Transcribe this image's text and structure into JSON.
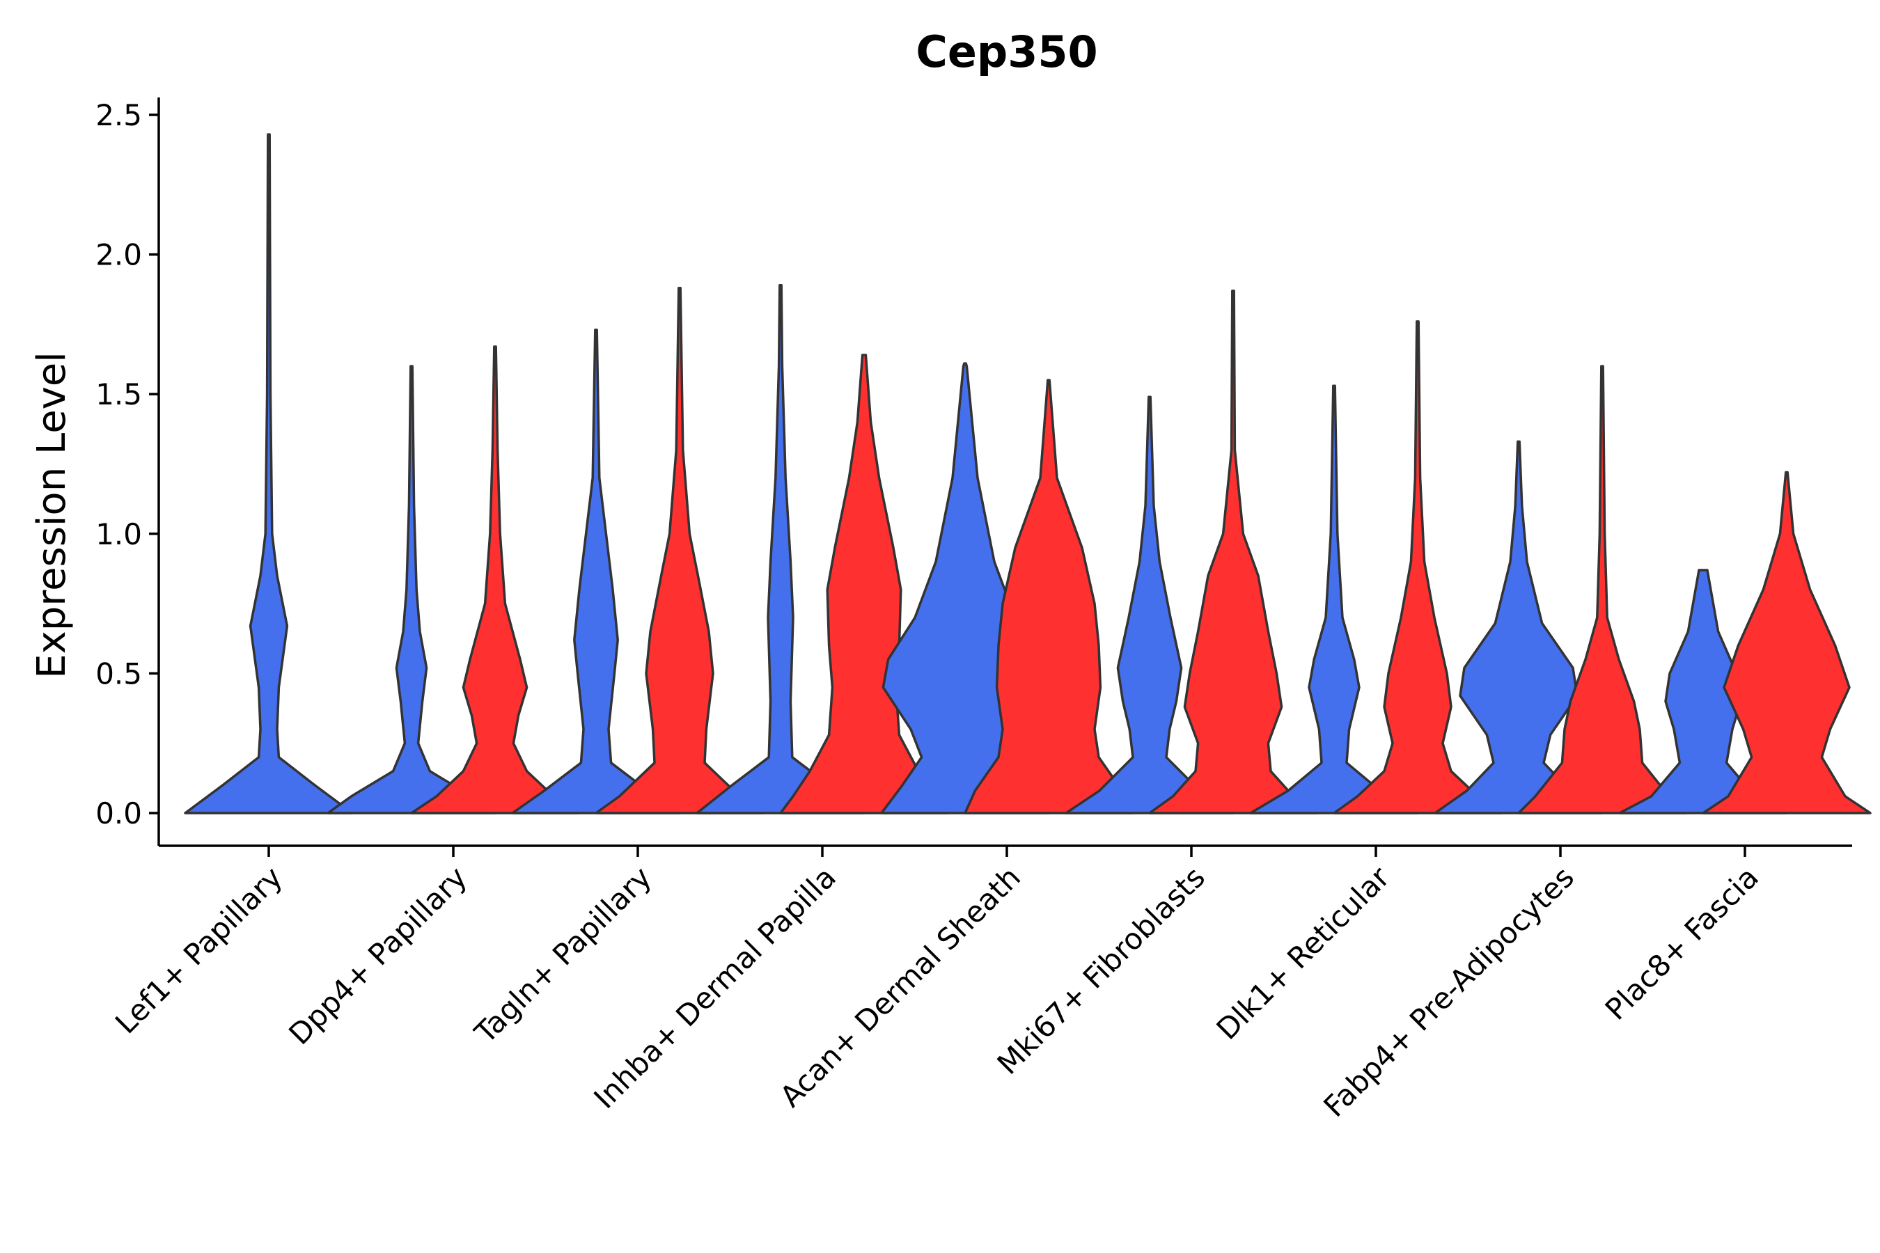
{
  "chart_data": {
    "type": "violin",
    "title": "Cep350",
    "xlabel": "",
    "ylabel": "Expression Level",
    "ylim": [
      -0.12,
      2.55
    ],
    "yticks": [
      0.0,
      0.5,
      1.0,
      1.5,
      2.0,
      2.5
    ],
    "ytick_labels": [
      "0.0",
      "0.5",
      "1.0",
      "1.5",
      "2.0",
      "2.5"
    ],
    "grid": false,
    "legend": "none",
    "series_colors": [
      "#4470EE",
      "#FF3030"
    ],
    "categories": [
      "Lef1+ Papillary",
      "Dpp4+ Papillary",
      "Tagln+ Papillary",
      "Inhba+ Dermal Papilla",
      "Acan+ Dermal Sheath",
      "Mki67+ Fibroblasts",
      "Dlk1+ Reticular",
      "Fabp4+ Pre-Adipocytes",
      "Plac8+ Fascia"
    ],
    "groups": [
      {
        "category": "Lef1+ Papillary",
        "violins": [
          {
            "series": 0,
            "max": 2.43,
            "profile": [
              [
                0,
                1
              ],
              [
                0.1,
                0.55
              ],
              [
                0.2,
                0.12
              ],
              [
                0.3,
                0.1
              ],
              [
                0.45,
                0.12
              ],
              [
                0.67,
                0.22
              ],
              [
                0.85,
                0.1
              ],
              [
                1.0,
                0.04
              ],
              [
                1.5,
                0.02
              ],
              [
                2.43,
                0.01
              ]
            ]
          }
        ]
      },
      {
        "category": "Dpp4+ Papillary",
        "violins": [
          {
            "series": 0,
            "max": 1.6,
            "profile": [
              [
                0,
                1
              ],
              [
                0.06,
                0.72
              ],
              [
                0.15,
                0.22
              ],
              [
                0.25,
                0.08
              ],
              [
                0.4,
                0.13
              ],
              [
                0.52,
                0.18
              ],
              [
                0.65,
                0.1
              ],
              [
                0.8,
                0.06
              ],
              [
                1.1,
                0.03
              ],
              [
                1.6,
                0.01
              ]
            ]
          },
          {
            "series": 1,
            "max": 1.67,
            "profile": [
              [
                0,
                1
              ],
              [
                0.06,
                0.7
              ],
              [
                0.15,
                0.38
              ],
              [
                0.25,
                0.22
              ],
              [
                0.35,
                0.28
              ],
              [
                0.45,
                0.38
              ],
              [
                0.55,
                0.3
              ],
              [
                0.75,
                0.12
              ],
              [
                1.0,
                0.06
              ],
              [
                1.3,
                0.03
              ],
              [
                1.67,
                0.01
              ]
            ]
          }
        ]
      },
      {
        "category": "Tagln+ Papillary",
        "violins": [
          {
            "series": 0,
            "max": 1.73,
            "profile": [
              [
                0,
                1
              ],
              [
                0.08,
                0.62
              ],
              [
                0.18,
                0.18
              ],
              [
                0.3,
                0.15
              ],
              [
                0.5,
                0.22
              ],
              [
                0.62,
                0.26
              ],
              [
                0.8,
                0.2
              ],
              [
                1.0,
                0.12
              ],
              [
                1.2,
                0.04
              ],
              [
                1.73,
                0.01
              ]
            ]
          },
          {
            "series": 1,
            "max": 1.88,
            "profile": [
              [
                0,
                1
              ],
              [
                0.06,
                0.72
              ],
              [
                0.18,
                0.3
              ],
              [
                0.3,
                0.32
              ],
              [
                0.5,
                0.4
              ],
              [
                0.65,
                0.35
              ],
              [
                0.85,
                0.22
              ],
              [
                1.0,
                0.12
              ],
              [
                1.3,
                0.04
              ],
              [
                1.88,
                0.01
              ]
            ]
          }
        ]
      },
      {
        "category": "Inhba+ Dermal Papilla",
        "violins": [
          {
            "series": 0,
            "max": 1.89,
            "profile": [
              [
                0,
                1
              ],
              [
                0.1,
                0.58
              ],
              [
                0.2,
                0.14
              ],
              [
                0.4,
                0.12
              ],
              [
                0.7,
                0.15
              ],
              [
                0.9,
                0.12
              ],
              [
                1.2,
                0.06
              ],
              [
                1.6,
                0.02
              ],
              [
                1.89,
                0.01
              ]
            ]
          },
          {
            "series": 1,
            "max": 1.64,
            "profile": [
              [
                0,
                1
              ],
              [
                0.06,
                0.85
              ],
              [
                0.15,
                0.65
              ],
              [
                0.28,
                0.42
              ],
              [
                0.45,
                0.38
              ],
              [
                0.6,
                0.42
              ],
              [
                0.8,
                0.44
              ],
              [
                0.95,
                0.35
              ],
              [
                1.2,
                0.18
              ],
              [
                1.4,
                0.08
              ],
              [
                1.64,
                0.02
              ]
            ]
          }
        ]
      },
      {
        "category": "Acan+ Dermal Sheath",
        "violins": [
          {
            "series": 0,
            "max": 1.61,
            "profile": [
              [
                0,
                1
              ],
              [
                0.1,
                0.75
              ],
              [
                0.2,
                0.52
              ],
              [
                0.3,
                0.65
              ],
              [
                0.45,
                0.98
              ],
              [
                0.55,
                0.92
              ],
              [
                0.7,
                0.6
              ],
              [
                0.9,
                0.35
              ],
              [
                1.2,
                0.15
              ],
              [
                1.6,
                0.02
              ]
            ]
          },
          {
            "series": 1,
            "max": 1.55,
            "profile": [
              [
                0,
                1
              ],
              [
                0.08,
                0.88
              ],
              [
                0.2,
                0.6
              ],
              [
                0.3,
                0.55
              ],
              [
                0.45,
                0.62
              ],
              [
                0.6,
                0.6
              ],
              [
                0.75,
                0.55
              ],
              [
                0.95,
                0.4
              ],
              [
                1.2,
                0.1
              ],
              [
                1.55,
                0.01
              ]
            ]
          }
        ]
      },
      {
        "category": "Mki67+ Fibroblasts",
        "violins": [
          {
            "series": 0,
            "max": 1.49,
            "profile": [
              [
                0,
                1
              ],
              [
                0.08,
                0.6
              ],
              [
                0.2,
                0.2
              ],
              [
                0.3,
                0.24
              ],
              [
                0.4,
                0.32
              ],
              [
                0.52,
                0.38
              ],
              [
                0.7,
                0.25
              ],
              [
                0.9,
                0.12
              ],
              [
                1.1,
                0.05
              ],
              [
                1.49,
                0.01
              ]
            ]
          },
          {
            "series": 1,
            "max": 1.87,
            "profile": [
              [
                0,
                1
              ],
              [
                0.06,
                0.72
              ],
              [
                0.15,
                0.45
              ],
              [
                0.25,
                0.42
              ],
              [
                0.38,
                0.58
              ],
              [
                0.5,
                0.52
              ],
              [
                0.65,
                0.42
              ],
              [
                0.85,
                0.3
              ],
              [
                1.0,
                0.12
              ],
              [
                1.3,
                0.02
              ],
              [
                1.87,
                0.01
              ]
            ]
          }
        ]
      },
      {
        "category": "Dlk1+ Reticular",
        "violins": [
          {
            "series": 0,
            "max": 1.53,
            "profile": [
              [
                0,
                1
              ],
              [
                0.08,
                0.55
              ],
              [
                0.18,
                0.15
              ],
              [
                0.3,
                0.18
              ],
              [
                0.45,
                0.3
              ],
              [
                0.55,
                0.24
              ],
              [
                0.7,
                0.1
              ],
              [
                1.0,
                0.04
              ],
              [
                1.53,
                0.01
              ]
            ]
          },
          {
            "series": 1,
            "max": 1.76,
            "profile": [
              [
                0,
                1
              ],
              [
                0.06,
                0.72
              ],
              [
                0.15,
                0.4
              ],
              [
                0.25,
                0.3
              ],
              [
                0.38,
                0.4
              ],
              [
                0.5,
                0.35
              ],
              [
                0.7,
                0.2
              ],
              [
                0.9,
                0.08
              ],
              [
                1.2,
                0.03
              ],
              [
                1.76,
                0.01
              ]
            ]
          }
        ]
      },
      {
        "category": "Fabp4+ Pre-Adipocytes",
        "violins": [
          {
            "series": 0,
            "max": 1.33,
            "profile": [
              [
                0,
                1
              ],
              [
                0.08,
                0.62
              ],
              [
                0.18,
                0.3
              ],
              [
                0.28,
                0.38
              ],
              [
                0.42,
                0.7
              ],
              [
                0.52,
                0.65
              ],
              [
                0.68,
                0.28
              ],
              [
                0.9,
                0.1
              ],
              [
                1.1,
                0.04
              ],
              [
                1.33,
                0.01
              ]
            ]
          },
          {
            "series": 1,
            "max": 1.6,
            "profile": [
              [
                0,
                1
              ],
              [
                0.06,
                0.8
              ],
              [
                0.18,
                0.48
              ],
              [
                0.3,
                0.45
              ],
              [
                0.4,
                0.38
              ],
              [
                0.55,
                0.2
              ],
              [
                0.7,
                0.06
              ],
              [
                1.0,
                0.03
              ],
              [
                1.6,
                0.01
              ]
            ]
          }
        ]
      },
      {
        "category": "Plac8+ Fascia",
        "violins": [
          {
            "series": 0,
            "max": 0.87,
            "profile": [
              [
                0,
                1
              ],
              [
                0.06,
                0.62
              ],
              [
                0.18,
                0.28
              ],
              [
                0.3,
                0.35
              ],
              [
                0.4,
                0.45
              ],
              [
                0.5,
                0.4
              ],
              [
                0.65,
                0.18
              ],
              [
                0.87,
                0.05
              ]
            ]
          },
          {
            "series": 1,
            "max": 1.22,
            "profile": [
              [
                0,
                1
              ],
              [
                0.06,
                0.7
              ],
              [
                0.2,
                0.42
              ],
              [
                0.3,
                0.52
              ],
              [
                0.45,
                0.75
              ],
              [
                0.6,
                0.58
              ],
              [
                0.8,
                0.28
              ],
              [
                1.0,
                0.08
              ],
              [
                1.22,
                0.01
              ]
            ]
          }
        ]
      }
    ]
  }
}
